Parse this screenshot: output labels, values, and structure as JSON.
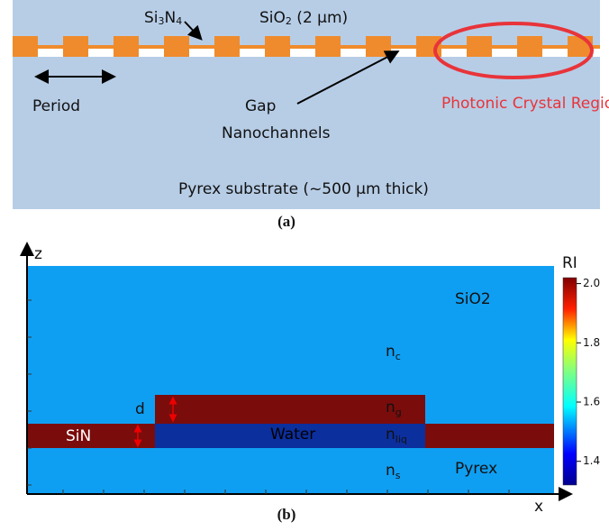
{
  "panel_a": {
    "si3n4": {
      "base": "Si",
      "sub1": "3",
      "mid": "N",
      "sub2": "4"
    },
    "sio2": {
      "base": "SiO",
      "sub": "2",
      "rest": " (2 µm)"
    },
    "period": "Period",
    "gap": "Gap",
    "nanochannels": "Nanochannels",
    "photonic_crystal": "Photonic Crystal Region",
    "substrate": "Pyrex substrate (~500 µm thick)",
    "caption": "(a)"
  },
  "panel_b": {
    "z_axis": "z",
    "x_axis": "x",
    "sio2": "SiO2",
    "sin": "SiN",
    "water": "Water",
    "pyrex": "Pyrex",
    "d": "d",
    "nc": {
      "base": "n",
      "sub": "c"
    },
    "ng": {
      "base": "n",
      "sub": "g"
    },
    "nliq": {
      "base": "n",
      "sub": "liq"
    },
    "ns": {
      "base": "n",
      "sub": "s"
    },
    "colorbar": {
      "title": "RI",
      "range": [
        1.32,
        2.02
      ],
      "ticks": [
        {
          "value": 2.0,
          "label": "2.0"
        },
        {
          "value": 1.8,
          "label": "1.8"
        },
        {
          "value": 1.6,
          "label": "1.6"
        },
        {
          "value": 1.4,
          "label": "1.4"
        }
      ]
    },
    "caption": "(b)"
  }
}
